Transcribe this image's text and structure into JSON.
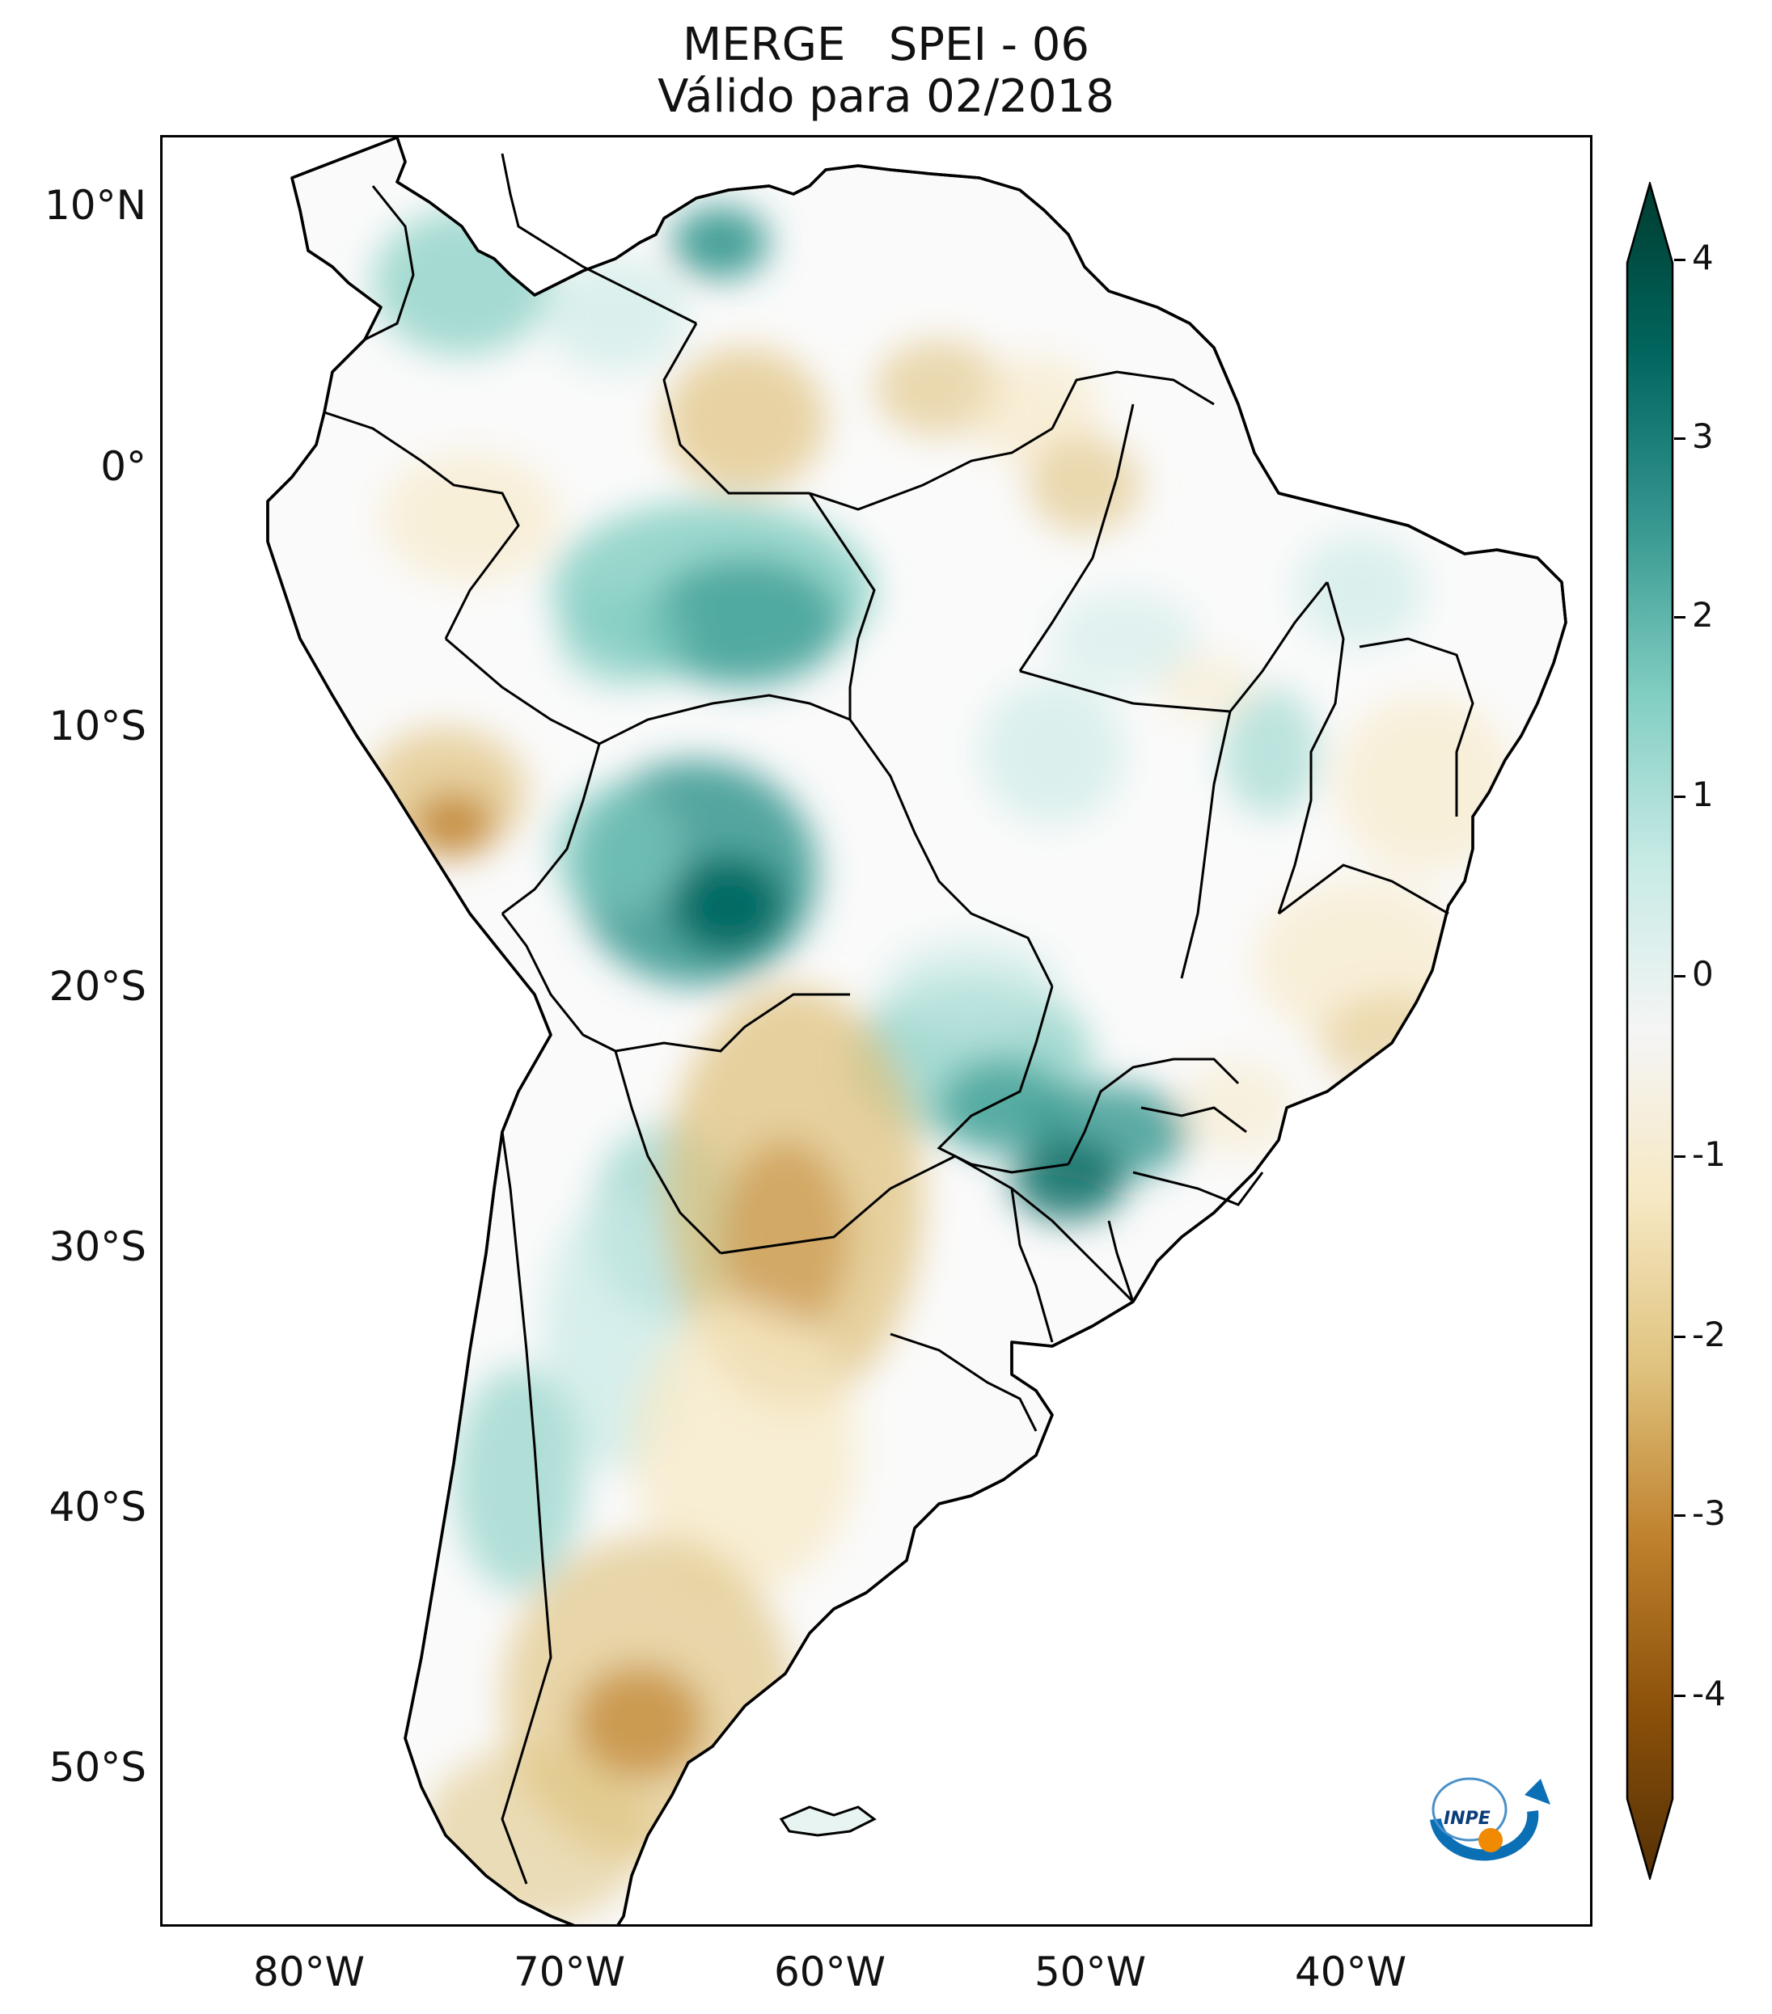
{
  "title": {
    "line1": "MERGE   SPEI - 06",
    "line2": "Válido para 02/2018"
  },
  "map": {
    "region": "South America",
    "lat_labels": [
      "10°N",
      "0°",
      "10°S",
      "20°S",
      "30°S",
      "40°S",
      "50°S"
    ],
    "lon_labels": [
      "80°W",
      "70°W",
      "60°W",
      "50°W",
      "40°W"
    ]
  },
  "colorbar": {
    "ticks": [
      "4",
      "3",
      "2",
      "1",
      "0",
      "-1",
      "-2",
      "-3",
      "-4"
    ],
    "colors": {
      "wet_max": "#003c30",
      "wet_high": "#01665e",
      "wet_mid": "#35978f",
      "wet_low": "#80cdc1",
      "wet_min": "#c7eae5",
      "neutral": "#f5f5f5",
      "dry_min": "#f6e8c3",
      "dry_low": "#dfc27d",
      "dry_mid": "#bf812d",
      "dry_high": "#8c510a",
      "dry_max": "#543005"
    }
  },
  "logo": {
    "text": "INPE"
  }
}
